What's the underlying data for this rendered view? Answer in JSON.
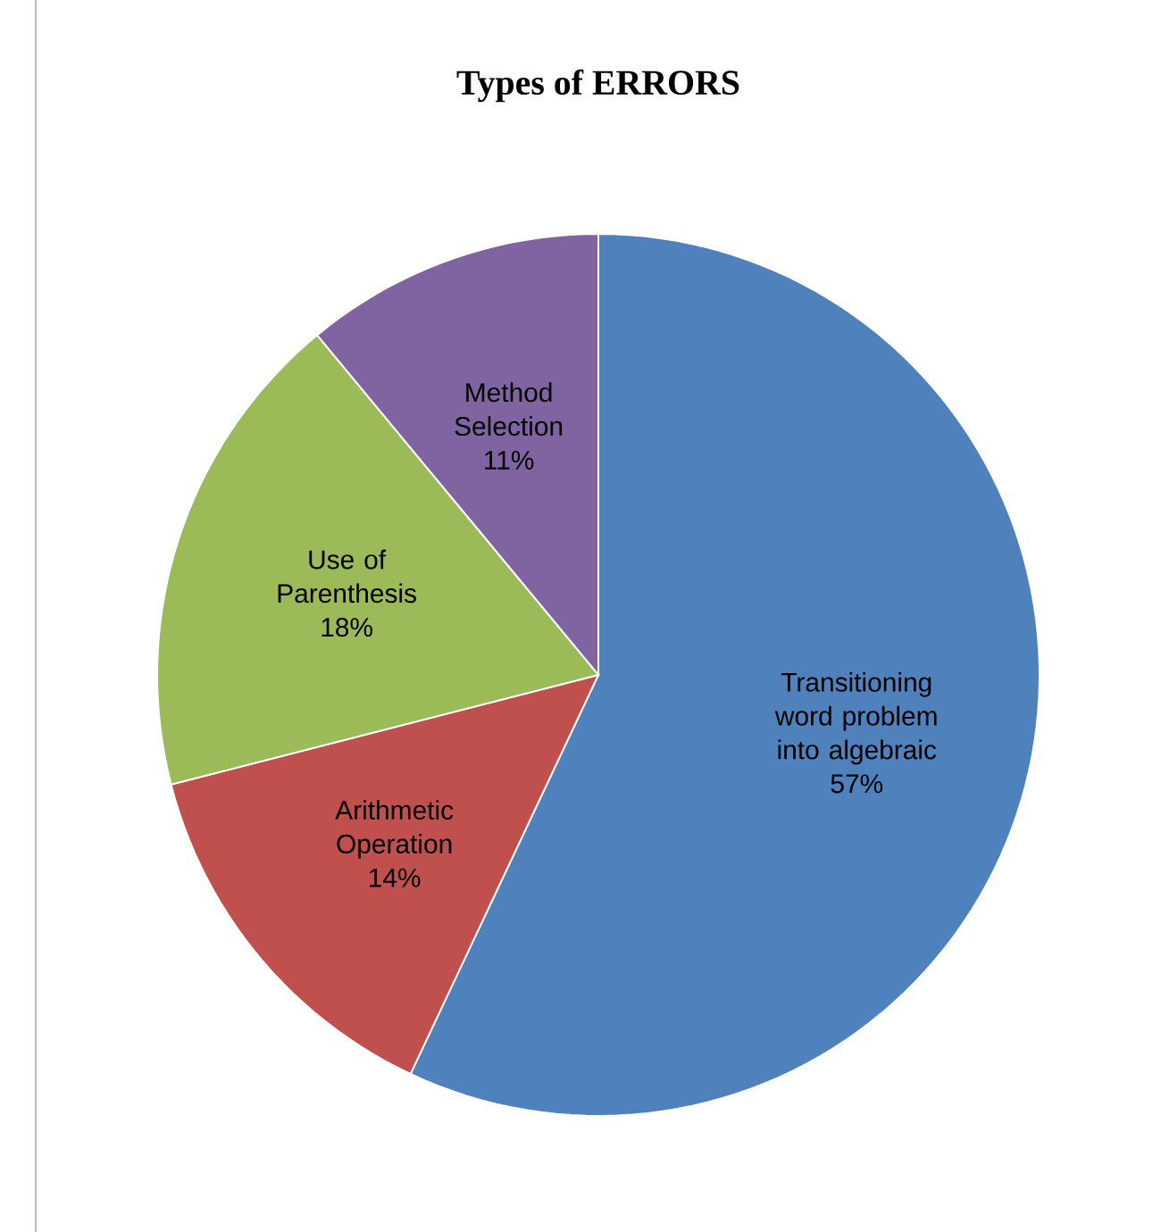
{
  "chart_data": {
    "type": "pie",
    "title": "Types of ERRORS",
    "categories": [
      "Transitioning word problem into algebraic",
      "Arithmetic Operation",
      "Use of Parenthesis",
      "Method Selection"
    ],
    "values": [
      57,
      14,
      18,
      11
    ],
    "colors": [
      "#4f81bd",
      "#c0504d",
      "#9bbb59",
      "#8064a2"
    ],
    "value_labels": [
      "57%",
      "14%",
      "18%",
      "11%"
    ]
  }
}
